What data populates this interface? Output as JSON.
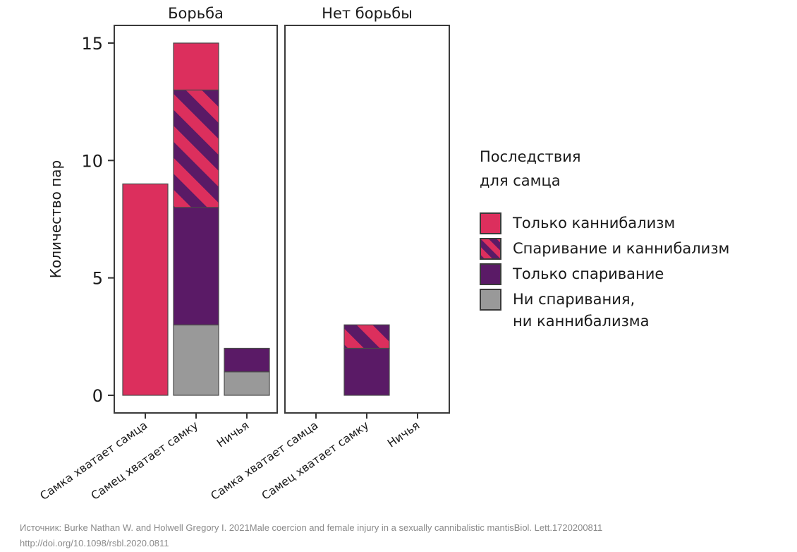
{
  "chart_data": {
    "type": "bar",
    "stacked": true,
    "ylabel": "Количество пар",
    "ylim": [
      0,
      15.8
    ],
    "yticks": [
      0,
      5,
      10,
      15
    ],
    "categories": [
      "Самка хватает самца",
      "Самец хватает самку",
      "Ничья"
    ],
    "panels": [
      {
        "title": "Борьба",
        "values": {
          "none": [
            0,
            3,
            1
          ],
          "mating_only": [
            0,
            5,
            1
          ],
          "mating_and_cannibalism": [
            0,
            5,
            0
          ],
          "cannibalism_only": [
            9,
            2,
            0
          ]
        }
      },
      {
        "title": "Нет борьбы",
        "values": {
          "none": [
            0,
            0,
            0
          ],
          "mating_only": [
            0,
            2,
            0
          ],
          "mating_and_cannibalism": [
            0,
            1,
            0
          ],
          "cannibalism_only": [
            0,
            0,
            0
          ]
        }
      }
    ],
    "series_order": [
      "none",
      "mating_only",
      "mating_and_cannibalism",
      "cannibalism_only"
    ]
  },
  "legend": {
    "title_lines": [
      "Последствия",
      "для самца"
    ],
    "items": [
      {
        "key": "cannibalism_only",
        "lines": [
          "Только каннибализм"
        ],
        "color": "#DC2F5D"
      },
      {
        "key": "mating_and_cannibalism",
        "lines": [
          "Спаривание и каннибализм"
        ],
        "color": "#DC2F5D",
        "color2": "#5A1A66",
        "pattern": "stripes"
      },
      {
        "key": "mating_only",
        "lines": [
          "Только спаривание"
        ],
        "color": "#5A1A66"
      },
      {
        "key": "none",
        "lines": [
          "Ни спаривания,",
          "ни каннибализма"
        ],
        "color": "#999999"
      }
    ]
  },
  "source": {
    "line1": "Источник: Burke Nathan W. and Holwell Gregory I. 2021Male coercion and female injury in a sexually cannibalistic mantisBiol. Lett.1720200811",
    "line2": "http://doi.org/10.1098/rsbl.2020.0811"
  }
}
